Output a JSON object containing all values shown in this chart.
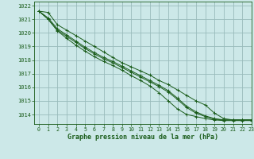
{
  "background_color": "#cce8e8",
  "grid_color": "#99bbbb",
  "line_color": "#1a5c1a",
  "text_color": "#1a5c1a",
  "xlabel": "Graphe pression niveau de la mer (hPa)",
  "xlim": [
    -0.5,
    23
  ],
  "ylim": [
    1013.3,
    1022.3
  ],
  "yticks": [
    1014,
    1015,
    1016,
    1017,
    1018,
    1019,
    1020,
    1021,
    1022
  ],
  "xticks": [
    0,
    1,
    2,
    3,
    4,
    5,
    6,
    7,
    8,
    9,
    10,
    11,
    12,
    13,
    14,
    15,
    16,
    17,
    18,
    19,
    20,
    21,
    22,
    23
  ],
  "series": [
    [
      1021.6,
      1021.5,
      1020.6,
      1020.2,
      1019.8,
      1019.4,
      1019.0,
      1018.6,
      1018.2,
      1017.8,
      1017.5,
      1017.2,
      1016.9,
      1016.5,
      1016.2,
      1015.8,
      1015.4,
      1015.0,
      1014.7,
      1014.1,
      1013.7,
      1013.6,
      1013.6,
      1013.6
    ],
    [
      1021.6,
      1021.1,
      1020.3,
      1019.85,
      1019.4,
      1018.95,
      1018.55,
      1018.2,
      1017.9,
      1017.55,
      1017.2,
      1016.85,
      1016.5,
      1016.15,
      1015.75,
      1015.2,
      1014.6,
      1014.2,
      1013.9,
      1013.7,
      1013.6,
      1013.6,
      1013.6,
      1013.6
    ],
    [
      1021.6,
      1021.0,
      1020.2,
      1019.75,
      1019.3,
      1018.85,
      1018.45,
      1018.1,
      1017.8,
      1017.45,
      1017.1,
      1016.75,
      1016.4,
      1016.05,
      1015.65,
      1015.1,
      1014.5,
      1014.1,
      1013.85,
      1013.65,
      1013.6,
      1013.6,
      1013.6,
      1013.6
    ],
    [
      1021.6,
      1021.0,
      1020.15,
      1019.6,
      1019.1,
      1018.65,
      1018.25,
      1017.9,
      1017.6,
      1017.25,
      1016.85,
      1016.5,
      1016.1,
      1015.6,
      1015.0,
      1014.4,
      1014.0,
      1013.85,
      1013.7,
      1013.6,
      1013.55,
      1013.55,
      1013.55,
      1013.55
    ]
  ],
  "series_has_markers": [
    false,
    true,
    true,
    true
  ]
}
